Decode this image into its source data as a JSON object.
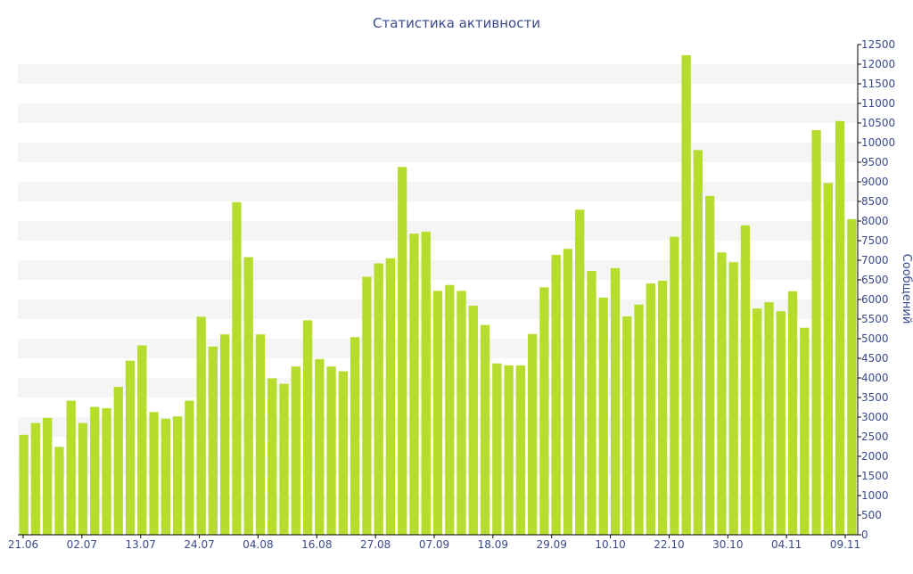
{
  "chart_data": {
    "type": "bar",
    "title": "Статистика активности",
    "ylabel": "Сообщений",
    "xlabel": "",
    "ylim": [
      0,
      12500
    ],
    "y_ticks": [
      0,
      500,
      1000,
      1500,
      2000,
      2500,
      3000,
      3500,
      4000,
      4500,
      5000,
      5500,
      6000,
      6500,
      7000,
      7500,
      8000,
      8500,
      9000,
      9500,
      10000,
      10500,
      11000,
      11500,
      12000,
      12500
    ],
    "x_tick_labels": [
      "21.06",
      "02.07",
      "13.07",
      "24.07",
      "04.08",
      "16.08",
      "27.08",
      "07.09",
      "18.09",
      "29.09",
      "10.10",
      "22.10",
      "30.10",
      "04.11",
      "09.11"
    ],
    "values": [
      2550,
      2850,
      2980,
      2240,
      3420,
      2850,
      3260,
      3230,
      3770,
      4440,
      4830,
      3130,
      2960,
      3020,
      3420,
      5560,
      4800,
      5110,
      8480,
      7080,
      5110,
      3990,
      3850,
      4290,
      5470,
      4480,
      4290,
      4170,
      5040,
      6580,
      6920,
      7050,
      9380,
      7680,
      7730,
      6220,
      6370,
      6220,
      5840,
      5350,
      4370,
      4320,
      4320,
      5120,
      6310,
      7140,
      7290,
      8290,
      6730,
      6050,
      6800,
      5570,
      5870,
      6410,
      6480,
      7600,
      12230,
      9810,
      8640,
      7200,
      6950,
      7890,
      5770,
      5930,
      5700,
      6210,
      5280,
      10320,
      8970,
      10550,
      8050
    ],
    "grid": "alternating bands",
    "colors": {
      "bar": "#b6dd2e",
      "band": "#f5f5f5",
      "axis": "#000000",
      "text": "#3a4a8c"
    }
  }
}
